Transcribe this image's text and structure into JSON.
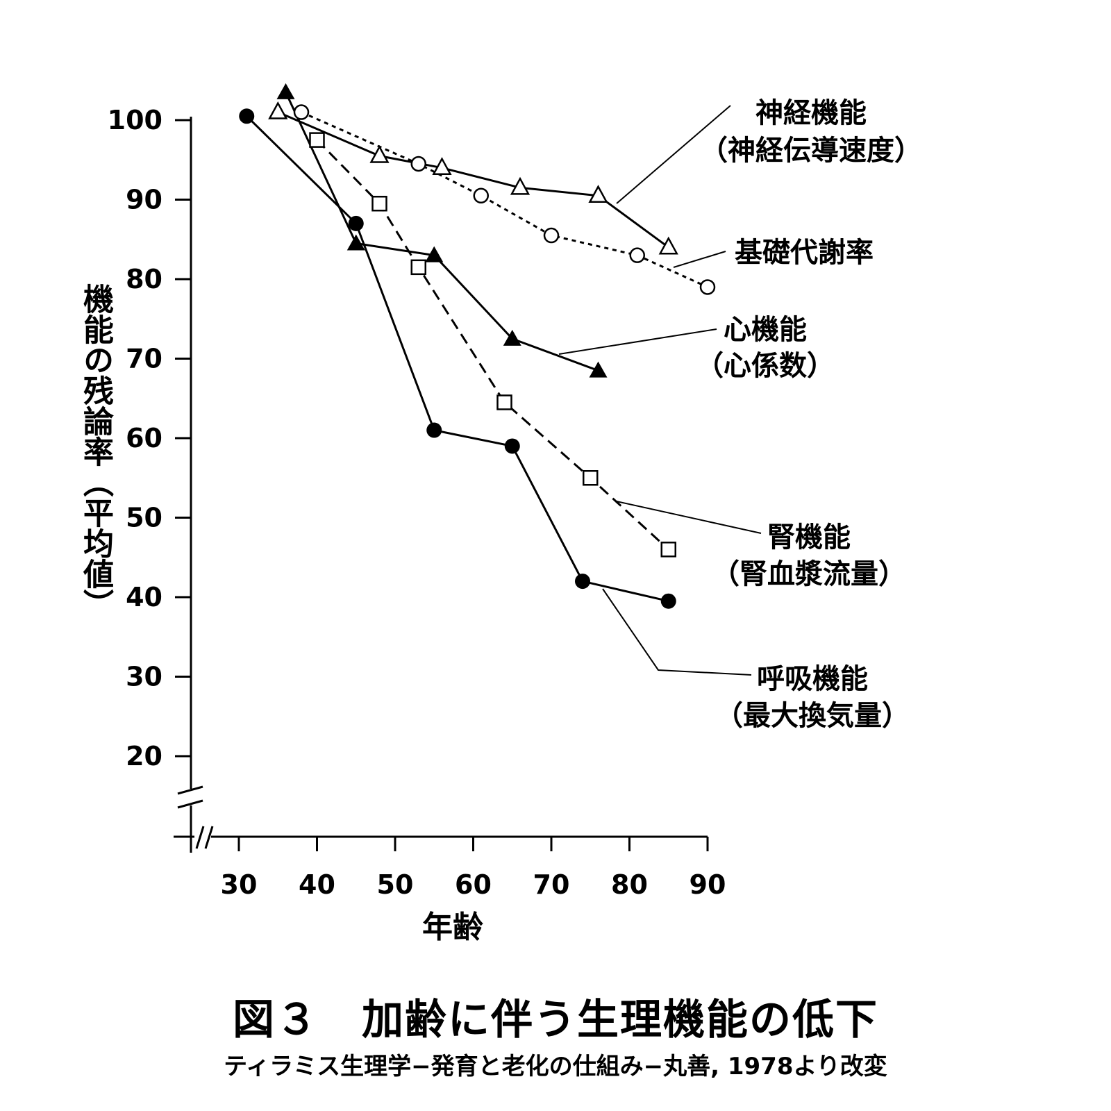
{
  "chart_data": {
    "type": "line",
    "title": "図３　加齢に伴う生理機能の低下",
    "subtitle": "ティラミス生理学−発育と老化の仕組み−丸善, 1978より改変",
    "xlabel": "年齢",
    "ylabel": "機能の残論率（平均値）",
    "xlim": [
      23,
      90
    ],
    "ylim": [
      10,
      100
    ],
    "x_ticks": [
      "30",
      "40",
      "50",
      "60",
      "70",
      "80",
      "90"
    ],
    "y_ticks": [
      "20",
      "30",
      "40",
      "50",
      "60",
      "70",
      "80",
      "90",
      "100"
    ],
    "axis_breaks": true,
    "grid": false,
    "legend": "direct labels",
    "series": [
      {
        "name": "神経機能",
        "sub": "（神経伝導速度）",
        "marker": "triangle-open",
        "line": "solid",
        "x": [
          35,
          48,
          56,
          66,
          76,
          85
        ],
        "y": [
          101,
          95.5,
          94,
          91.5,
          90.5,
          84
        ]
      },
      {
        "name": "基礎代謝率",
        "sub": "",
        "marker": "circle-open",
        "line": "dotted",
        "x": [
          38,
          53,
          61,
          70,
          81,
          90
        ],
        "y": [
          101,
          94.5,
          90.5,
          85.5,
          83,
          79
        ]
      },
      {
        "name": "心機能",
        "sub": "（心係数）",
        "marker": "triangle-filled",
        "line": "solid",
        "x": [
          36,
          45,
          55,
          65,
          76
        ],
        "y": [
          103.5,
          84.5,
          83,
          72.5,
          68.5
        ]
      },
      {
        "name": "腎機能",
        "sub": "（腎血漿流量）",
        "marker": "square-open",
        "line": "dashed",
        "x": [
          40,
          48,
          53,
          64,
          75,
          85
        ],
        "y": [
          97.5,
          89.5,
          81.5,
          64.5,
          55,
          46
        ]
      },
      {
        "name": "呼吸機能",
        "sub": "（最大換気量）",
        "marker": "circle-filled",
        "line": "solid",
        "x": [
          31,
          45,
          55,
          65,
          74,
          85
        ],
        "y": [
          100.5,
          87,
          61,
          59,
          42,
          39.5
        ]
      }
    ]
  }
}
